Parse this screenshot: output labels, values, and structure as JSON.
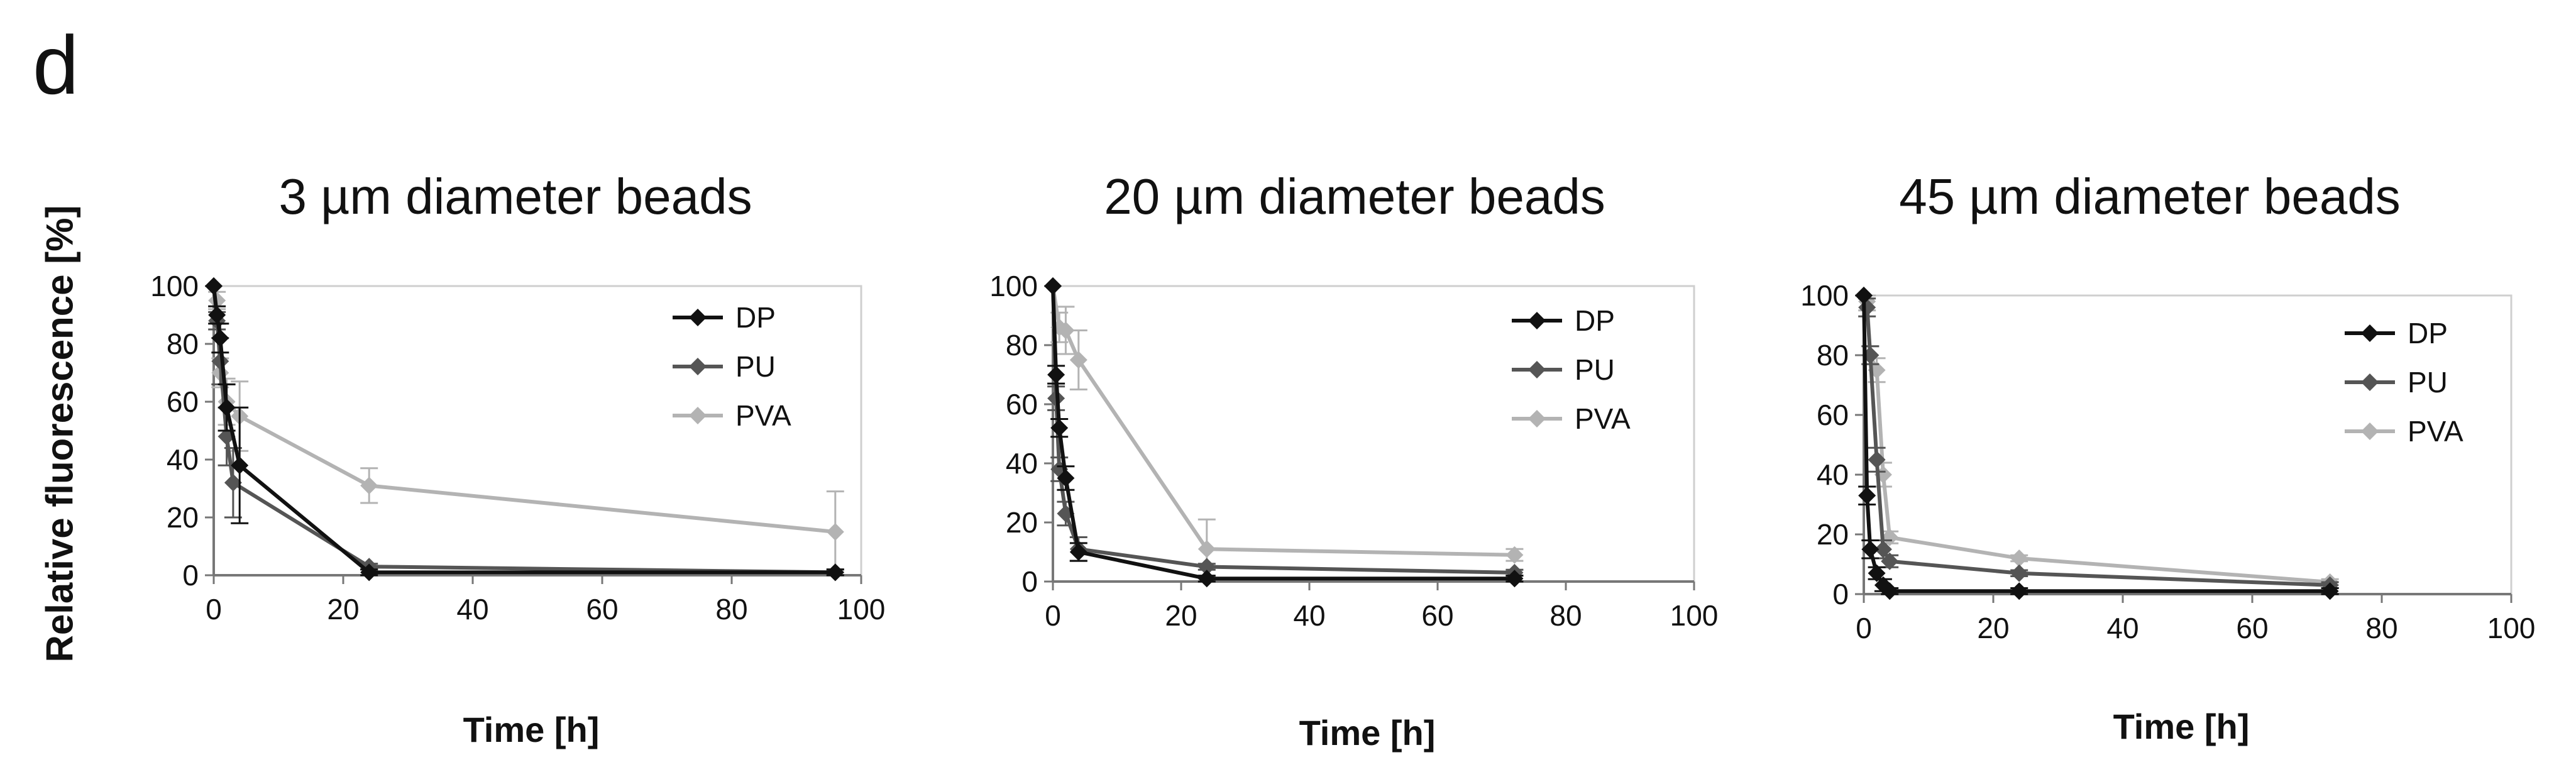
{
  "panel_label": "d",
  "ylabel": "Relative fluorescence [%]",
  "chart_data": [
    {
      "type": "line",
      "title": "3 µm diameter beads",
      "xlabel": "Time [h]",
      "ylabel": "Relative fluorescence [%]",
      "xlim": [
        0,
        100
      ],
      "ylim": [
        0,
        100
      ],
      "xticks": [
        "0",
        "20",
        "40",
        "60",
        "80",
        "100"
      ],
      "yticks": [
        "0",
        "20",
        "40",
        "60",
        "80",
        "100"
      ],
      "legend": [
        "DP",
        "PU",
        "PVA"
      ],
      "legend_position": "top-right",
      "grid": false,
      "series": [
        {
          "name": "DP",
          "color": "#111111",
          "x": [
            0,
            0.5,
            1,
            2,
            4,
            24,
            96
          ],
          "y": [
            100,
            90,
            82,
            58,
            38,
            1,
            1
          ],
          "err": [
            0,
            3,
            5,
            8,
            20,
            1,
            1
          ]
        },
        {
          "name": "PU",
          "color": "#555555",
          "x": [
            0,
            0.5,
            1,
            2,
            3,
            24,
            96
          ],
          "y": [
            100,
            88,
            74,
            48,
            32,
            3,
            1
          ],
          "err": [
            0,
            3,
            8,
            10,
            12,
            1,
            1
          ]
        },
        {
          "name": "PVA",
          "color": "#b3b3b3",
          "x": [
            0,
            0.5,
            1,
            2,
            4,
            24,
            96
          ],
          "y": [
            100,
            95,
            70,
            60,
            55,
            31,
            15
          ],
          "err": [
            0,
            3,
            5,
            8,
            12,
            6,
            14
          ]
        }
      ]
    },
    {
      "type": "line",
      "title": "20 µm diameter beads",
      "xlabel": "Time [h]",
      "ylabel": "",
      "xlim": [
        0,
        100
      ],
      "ylim": [
        0,
        100
      ],
      "xticks": [
        "0",
        "20",
        "40",
        "60",
        "80",
        "100"
      ],
      "yticks": [
        "0",
        "20",
        "40",
        "60",
        "80",
        "100"
      ],
      "legend": [
        "DP",
        "PU",
        "PVA"
      ],
      "legend_position": "top-right",
      "grid": false,
      "series": [
        {
          "name": "DP",
          "color": "#111111",
          "x": [
            0,
            0.5,
            1,
            2,
            4,
            24,
            72
          ],
          "y": [
            100,
            70,
            52,
            35,
            10,
            1,
            1
          ],
          "err": [
            0,
            3,
            3,
            4,
            3,
            1,
            1
          ]
        },
        {
          "name": "PU",
          "color": "#555555",
          "x": [
            0,
            0.5,
            1,
            2,
            4,
            24,
            72
          ],
          "y": [
            100,
            62,
            38,
            23,
            11,
            5,
            3
          ],
          "err": [
            0,
            4,
            4,
            4,
            4,
            1,
            1
          ]
        },
        {
          "name": "PVA",
          "color": "#b3b3b3",
          "x": [
            0,
            1,
            2,
            4,
            24,
            72
          ],
          "y": [
            100,
            86,
            85,
            75,
            11,
            9
          ],
          "err": [
            0,
            5,
            8,
            10,
            10,
            2
          ]
        }
      ]
    },
    {
      "type": "line",
      "title": "45 µm diameter beads",
      "xlabel": "Time [h]",
      "ylabel": "",
      "xlim": [
        0,
        100
      ],
      "ylim": [
        0,
        100
      ],
      "xticks": [
        "0",
        "20",
        "40",
        "60",
        "80",
        "100"
      ],
      "yticks": [
        "0",
        "20",
        "40",
        "60",
        "80",
        "100"
      ],
      "legend": [
        "DP",
        "PU",
        "PVA"
      ],
      "legend_position": "top-right",
      "grid": false,
      "series": [
        {
          "name": "DP",
          "color": "#111111",
          "x": [
            0,
            0.5,
            1,
            2,
            3,
            4,
            24,
            72
          ],
          "y": [
            100,
            33,
            15,
            7,
            3,
            1,
            1,
            1
          ],
          "err": [
            0,
            3,
            3,
            2,
            2,
            1,
            1,
            1
          ]
        },
        {
          "name": "PU",
          "color": "#555555",
          "x": [
            0,
            0.5,
            1,
            2,
            3,
            4,
            24,
            72
          ],
          "y": [
            100,
            96,
            80,
            45,
            15,
            11,
            7,
            3
          ],
          "err": [
            0,
            3,
            3,
            4,
            3,
            2,
            1,
            1
          ]
        },
        {
          "name": "PVA",
          "color": "#b3b3b3",
          "x": [
            0,
            0.5,
            1,
            2,
            3,
            4,
            24,
            72
          ],
          "y": [
            100,
            98,
            80,
            75,
            40,
            19,
            12,
            4
          ],
          "err": [
            0,
            3,
            3,
            4,
            4,
            2,
            1,
            1
          ]
        }
      ]
    }
  ]
}
